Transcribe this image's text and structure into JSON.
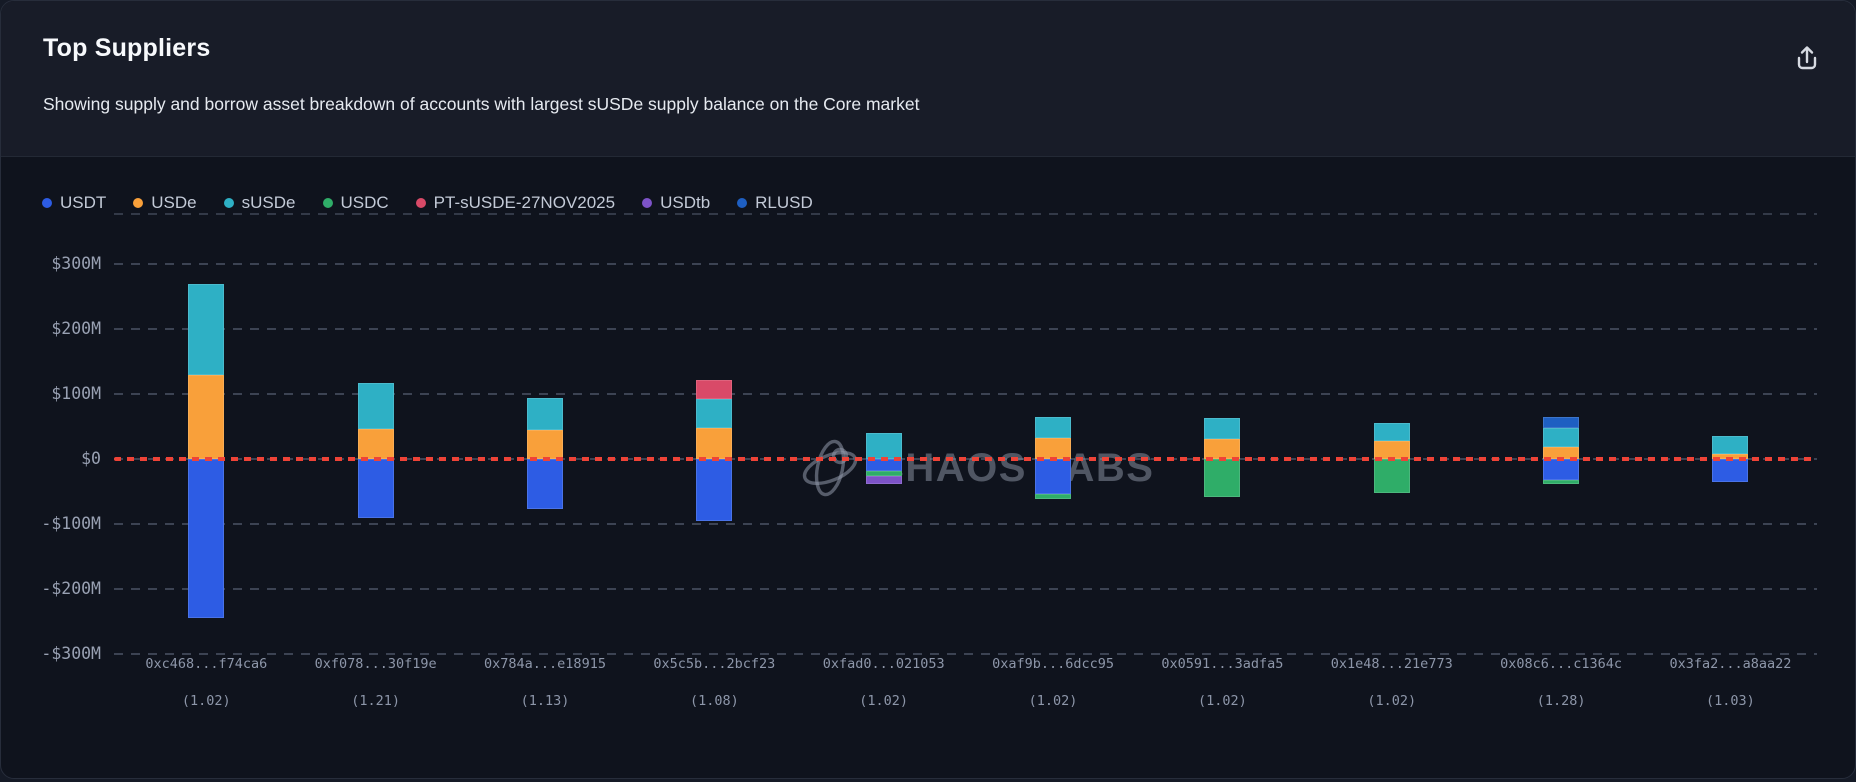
{
  "header": {
    "title": "Top Suppliers",
    "subtitle": "Showing supply and borrow asset breakdown of accounts with largest sUSDe supply balance on the Core market"
  },
  "watermark": {
    "text": "CHAOS LABS"
  },
  "chart_data": {
    "type": "bar",
    "stacked": true,
    "units": "USD millions",
    "title": "Top Suppliers",
    "grid": "dashed horizontal",
    "legend_position": "top-left",
    "zero_line_color": "#ef4337",
    "yticks": [
      "$300M",
      "$200M",
      "$100M",
      "$0",
      "-$100M",
      "-$200M",
      "-$300M"
    ],
    "ytick_values": [
      300,
      200,
      100,
      0,
      -100,
      -200,
      -300
    ],
    "ylim": [
      -377,
      377
    ],
    "assets": [
      {
        "name": "USDT",
        "color": "#2d5ce4"
      },
      {
        "name": "USDe",
        "color": "#f9a03a"
      },
      {
        "name": "sUSDe",
        "color": "#2eb0c5"
      },
      {
        "name": "USDC",
        "color": "#2fad68"
      },
      {
        "name": "PT-sUSDE-27NOV2025",
        "color": "#d94a68"
      },
      {
        "name": "USDtb",
        "color": "#7d53c8"
      },
      {
        "name": "RLUSD",
        "color": "#1e5fc2"
      }
    ],
    "bars": [
      {
        "address": "0xc468...f74ca6",
        "health_factor": "(1.02)",
        "supply": [
          {
            "asset": "USDe",
            "value": 129
          },
          {
            "asset": "sUSDe",
            "value": 140
          }
        ],
        "borrow": [
          {
            "asset": "USDT",
            "value": -245
          }
        ]
      },
      {
        "address": "0xf078...30f19e",
        "health_factor": "(1.21)",
        "supply": [
          {
            "asset": "USDe",
            "value": 46
          },
          {
            "asset": "sUSDe",
            "value": 71
          }
        ],
        "borrow": [
          {
            "asset": "USDT",
            "value": -91
          }
        ]
      },
      {
        "address": "0x784a...e18915",
        "health_factor": "(1.13)",
        "supply": [
          {
            "asset": "USDe",
            "value": 45
          },
          {
            "asset": "sUSDe",
            "value": 49
          }
        ],
        "borrow": [
          {
            "asset": "USDT",
            "value": -77
          }
        ]
      },
      {
        "address": "0x5c5b...2bcf23",
        "health_factor": "(1.08)",
        "supply": [
          {
            "asset": "USDe",
            "value": 48
          },
          {
            "asset": "sUSDe",
            "value": 44
          },
          {
            "asset": "PT-sUSDE-27NOV2025",
            "value": 30
          }
        ],
        "borrow": [
          {
            "asset": "USDT",
            "value": -95
          }
        ]
      },
      {
        "address": "0xfad0...021053",
        "health_factor": "(1.02)",
        "supply": [
          {
            "asset": "sUSDe",
            "value": 40
          }
        ],
        "borrow": [
          {
            "asset": "USDT",
            "value": -18
          },
          {
            "asset": "USDC",
            "value": -8
          },
          {
            "asset": "USDtb",
            "value": -12
          }
        ]
      },
      {
        "address": "0xaf9b...6dcc95",
        "health_factor": "(1.02)",
        "supply": [
          {
            "asset": "USDe",
            "value": 32
          },
          {
            "asset": "sUSDe",
            "value": 33
          }
        ],
        "borrow": [
          {
            "asset": "USDT",
            "value": -54
          },
          {
            "asset": "USDC",
            "value": -8
          }
        ]
      },
      {
        "address": "0x0591...3adfa5",
        "health_factor": "(1.02)",
        "supply": [
          {
            "asset": "USDe",
            "value": 31
          },
          {
            "asset": "sUSDe",
            "value": 32
          }
        ],
        "borrow": [
          {
            "asset": "USDC",
            "value": -58
          }
        ]
      },
      {
        "address": "0x1e48...21e773",
        "health_factor": "(1.02)",
        "supply": [
          {
            "asset": "USDe",
            "value": 28
          },
          {
            "asset": "sUSDe",
            "value": 27
          }
        ],
        "borrow": [
          {
            "asset": "USDC",
            "value": -53
          }
        ]
      },
      {
        "address": "0x08c6...c1364c",
        "health_factor": "(1.28)",
        "supply": [
          {
            "asset": "USDe",
            "value": 18
          },
          {
            "asset": "sUSDe",
            "value": 29
          },
          {
            "asset": "RLUSD",
            "value": 18
          }
        ],
        "borrow": [
          {
            "asset": "USDT",
            "value": -32
          },
          {
            "asset": "USDC",
            "value": -7
          }
        ]
      },
      {
        "address": "0x3fa2...a8aa22",
        "health_factor": "(1.03)",
        "supply": [
          {
            "asset": "USDe",
            "value": 8
          },
          {
            "asset": "sUSDe",
            "value": 27
          }
        ],
        "borrow": [
          {
            "asset": "USDT",
            "value": -35
          }
        ]
      }
    ]
  }
}
